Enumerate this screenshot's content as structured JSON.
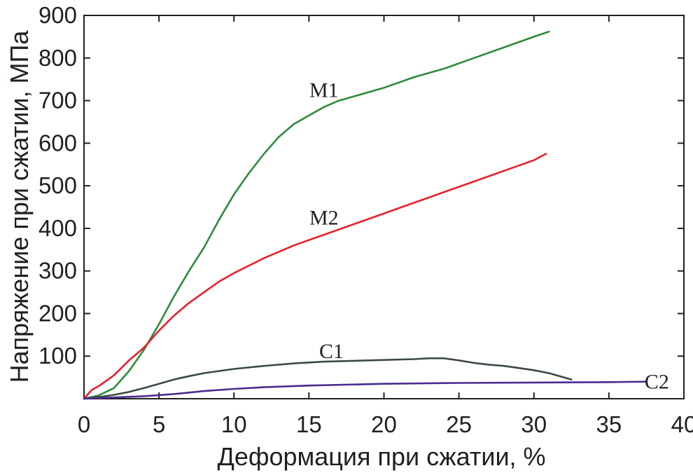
{
  "chart_data": {
    "type": "line",
    "xlabel": "Деформация при сжатии, %",
    "ylabel": "Напряжение при сжатии, МПа",
    "xlim": [
      0,
      40
    ],
    "ylim": [
      0,
      900
    ],
    "xticks": [
      0,
      5,
      10,
      15,
      20,
      25,
      30,
      35,
      40
    ],
    "yticks": [
      100,
      200,
      300,
      400,
      500,
      600,
      700,
      800,
      900
    ],
    "grid": false,
    "legend": "none",
    "series": [
      {
        "name": "M1",
        "color": "#2e8b3a",
        "label_at": [
          16,
          725
        ],
        "x": [
          0.0,
          1.0,
          2.0,
          3.0,
          4.0,
          5.0,
          6.0,
          7.0,
          8.0,
          9.0,
          10.0,
          11.0,
          12.0,
          13.0,
          14.0,
          15.0,
          16.0,
          17.0,
          18.0,
          20.0,
          22.0,
          24.0,
          26.0,
          28.0,
          30.0,
          31.0
        ],
        "values": [
          0,
          8,
          25,
          65,
          115,
          175,
          240,
          300,
          355,
          420,
          480,
          530,
          575,
          615,
          645,
          665,
          685,
          700,
          710,
          730,
          755,
          775,
          800,
          825,
          850,
          862
        ]
      },
      {
        "name": "M2",
        "color": "#e8202a",
        "label_at": [
          16,
          425
        ],
        "x": [
          0.0,
          0.5,
          1.0,
          2.0,
          3.0,
          4.0,
          5.0,
          6.0,
          7.0,
          8.0,
          9.0,
          10.0,
          12.0,
          14.0,
          16.0,
          18.0,
          20.0,
          22.0,
          24.0,
          26.0,
          28.0,
          30.0,
          30.8
        ],
        "values": [
          0,
          20,
          30,
          55,
          90,
          120,
          160,
          195,
          225,
          250,
          275,
          295,
          330,
          360,
          385,
          410,
          435,
          460,
          485,
          510,
          535,
          560,
          575
        ]
      },
      {
        "name": "C1",
        "color": "#3b4a45",
        "label_at": [
          16.5,
          112
        ],
        "x": [
          0.0,
          1.0,
          2.0,
          3.0,
          4.0,
          5.0,
          6.0,
          7.0,
          8.0,
          9.0,
          10.0,
          12.0,
          14.0,
          16.0,
          18.0,
          20.0,
          22.0,
          23.0,
          24.0,
          25.0,
          26.0,
          27.0,
          28.0,
          29.0,
          30.0,
          31.0,
          32.5
        ],
        "values": [
          0,
          4,
          9,
          16,
          25,
          35,
          45,
          53,
          60,
          65,
          70,
          77,
          83,
          87,
          89,
          91,
          93,
          95,
          95,
          90,
          84,
          80,
          77,
          72,
          67,
          60,
          45
        ]
      },
      {
        "name": "C2",
        "color": "#4b2c91",
        "label_at": [
          38.2,
          40
        ],
        "x": [
          0.0,
          2.0,
          4.0,
          6.0,
          8.0,
          10.0,
          12.0,
          15.0,
          20.0,
          25.0,
          30.0,
          35.0,
          37.5
        ],
        "values": [
          0,
          3,
          6,
          11,
          18,
          23,
          27,
          31,
          35,
          37,
          38,
          39,
          40
        ]
      }
    ]
  }
}
